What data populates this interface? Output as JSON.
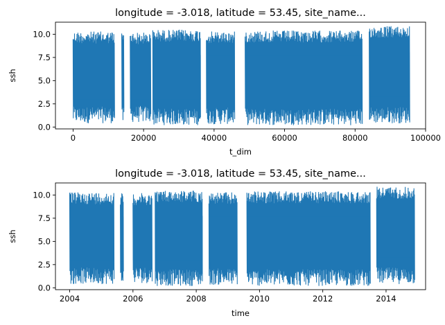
{
  "chart_data": [
    {
      "type": "line",
      "title": "longitude = -3.018, latitude = 53.45, site_name...",
      "xlabel": "t_dim",
      "ylabel": "ssh",
      "xlim": [
        -5000,
        100000
      ],
      "ylim": [
        -0.2,
        11.3
      ],
      "x_ticks": [
        0,
        20000,
        40000,
        60000,
        80000,
        100000
      ],
      "x_tick_labels": [
        "0",
        "20000",
        "40000",
        "60000",
        "80000",
        "100000"
      ],
      "y_ticks": [
        0.0,
        2.5,
        5.0,
        7.5,
        10.0
      ],
      "y_tick_labels": [
        "0.0",
        "2.5",
        "5.0",
        "7.5",
        "10.0"
      ],
      "grid": false,
      "color": "#1f77b4",
      "series": [
        {
          "segments": [
            {
              "x": [
                0,
                11800
              ],
              "y_min": 0.4,
              "y_max": 10.3
            },
            {
              "x": [
                13800,
                14400
              ],
              "y_min": 0.3,
              "y_max": 10.2
            },
            {
              "x": [
                16200,
                22000
              ],
              "y_min": 0.5,
              "y_max": 10.2
            },
            {
              "x": [
                22600,
                36200
              ],
              "y_min": 0.2,
              "y_max": 10.5
            },
            {
              "x": [
                37800,
                45800
              ],
              "y_min": 0.3,
              "y_max": 10.3
            },
            {
              "x": [
                48800,
                82000
              ],
              "y_min": 0.2,
              "y_max": 10.4
            },
            {
              "x": [
                84000,
                95500
              ],
              "y_min": 0.4,
              "y_max": 10.9
            }
          ]
        }
      ]
    },
    {
      "type": "line",
      "title": "longitude = -3.018, latitude = 53.45, site_name...",
      "xlabel": "time",
      "ylabel": "ssh",
      "xlim": [
        2003.55,
        2015.25
      ],
      "ylim": [
        -0.2,
        11.3
      ],
      "x_ticks": [
        2004,
        2006,
        2008,
        2010,
        2012,
        2014
      ],
      "x_tick_labels": [
        "2004",
        "2006",
        "2008",
        "2010",
        "2012",
        "2014"
      ],
      "y_ticks": [
        0.0,
        2.5,
        5.0,
        7.5,
        10.0
      ],
      "y_tick_labels": [
        "0.0",
        "2.5",
        "5.0",
        "7.5",
        "10.0"
      ],
      "grid": false,
      "color": "#1f77b4",
      "series": [
        {
          "segments": [
            {
              "x": [
                2004.0,
                2005.4
              ],
              "y_min": 0.4,
              "y_max": 10.3
            },
            {
              "x": [
                2005.6,
                2005.7
              ],
              "y_min": 0.3,
              "y_max": 10.2
            },
            {
              "x": [
                2006.0,
                2006.6
              ],
              "y_min": 0.5,
              "y_max": 10.2
            },
            {
              "x": [
                2006.7,
                2008.2
              ],
              "y_min": 0.2,
              "y_max": 10.5
            },
            {
              "x": [
                2008.4,
                2009.3
              ],
              "y_min": 0.3,
              "y_max": 10.3
            },
            {
              "x": [
                2009.6,
                2013.5
              ],
              "y_min": 0.2,
              "y_max": 10.4
            },
            {
              "x": [
                2013.7,
                2014.9
              ],
              "y_min": 0.4,
              "y_max": 10.9
            }
          ]
        }
      ]
    }
  ]
}
